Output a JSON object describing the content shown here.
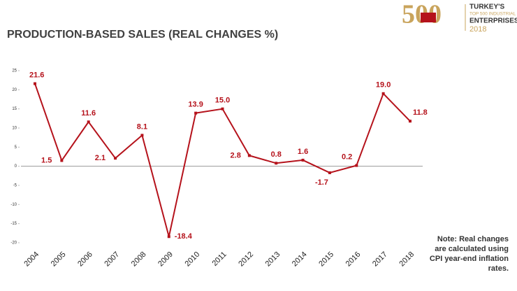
{
  "chart_data": {
    "type": "line",
    "title": "PRODUCTION-BASED SALES (REAL CHANGES %)",
    "categories": [
      "2004",
      "2005",
      "2006",
      "2007",
      "2008",
      "2009",
      "2010",
      "2011",
      "2012",
      "2013",
      "2014",
      "2015",
      "2016",
      "2017",
      "2018"
    ],
    "values": [
      21.6,
      1.5,
      11.6,
      2.1,
      8.1,
      -18.4,
      13.9,
      15.0,
      2.8,
      0.8,
      1.6,
      -1.7,
      0.2,
      19.0,
      11.8
    ],
    "value_labels": [
      "21.6",
      "1.5",
      "11.6",
      "2.1",
      "8.1",
      "-18.4",
      "13.9",
      "15.0",
      "2.8",
      "0.8",
      "1.6",
      "-1.7",
      "0.2",
      "19.0",
      "11.8"
    ],
    "color": "#b5121b",
    "ylim": [
      -20,
      25
    ],
    "yticks": [
      25,
      20,
      15,
      10,
      5,
      0,
      -5,
      -10,
      -15,
      -20
    ],
    "grid": false,
    "note": [
      "Note: Real changes",
      "are calculated using",
      "CPI year-end inflation",
      "rates."
    ]
  },
  "logo": {
    "number": "500",
    "line1": "TURKEY'S",
    "line2": "TOP 500 INDUSTRIAL",
    "line3": "ENTERPRISES",
    "year": "2018"
  }
}
